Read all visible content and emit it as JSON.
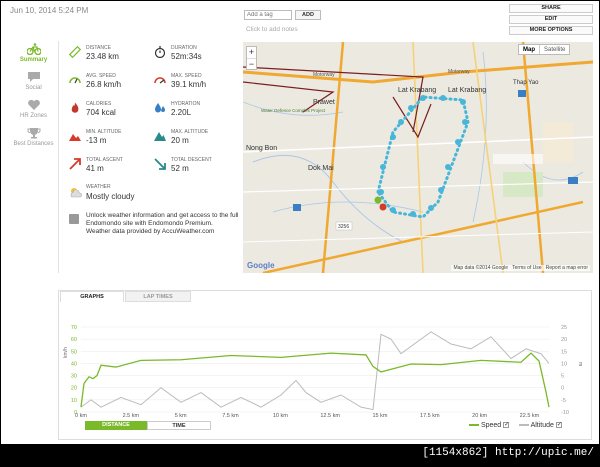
{
  "header": {
    "date": "Jun 10, 2014 5:24 PM",
    "tag_placeholder": "Add a tag",
    "add_label": "ADD",
    "notes_label": "Click to add notes",
    "actions": [
      "SHARE",
      "EDIT",
      "MORE OPTIONS"
    ]
  },
  "nav": {
    "items": [
      {
        "label": "Summary",
        "icon": "cyclist-icon"
      },
      {
        "label": "Social",
        "icon": "speech-bubble-icon"
      },
      {
        "label": "HR Zones",
        "icon": "heart-icon"
      },
      {
        "label": "Best Distances",
        "icon": "trophy-icon"
      }
    ]
  },
  "stats": [
    {
      "label": "DISTANCE",
      "value": "23.48 km",
      "icon": "ruler-icon",
      "color": "#7ab929"
    },
    {
      "label": "DURATION",
      "value": "52m:34s",
      "icon": "stopwatch-icon",
      "color": "#333333"
    },
    {
      "label": "AVG. SPEED",
      "value": "26.8 km/h",
      "icon": "speedometer-icon",
      "color": "#7ab929"
    },
    {
      "label": "MAX. SPEED",
      "value": "39.1 km/h",
      "icon": "speedometer-max-icon",
      "color": "#d63b2a"
    },
    {
      "label": "CALORIES",
      "value": "704 kcal",
      "icon": "flame-icon",
      "color": "#c0392b"
    },
    {
      "label": "HYDRATION",
      "value": "2.20L",
      "icon": "droplet-icon",
      "color": "#3a7fc4"
    },
    {
      "label": "MIN. ALTITUDE",
      "value": "-13 m",
      "icon": "altitude-down-icon",
      "color": "#d63b2a"
    },
    {
      "label": "MAX. ALTITUDE",
      "value": "20 m",
      "icon": "altitude-up-icon",
      "color": "#2a8a8a"
    },
    {
      "label": "TOTAL ASCENT",
      "value": "41 m",
      "icon": "ascent-icon",
      "color": "#d63b2a"
    },
    {
      "label": "TOTAL DESCENT",
      "value": "52 m",
      "icon": "descent-icon",
      "color": "#2a8a8a"
    }
  ],
  "weather": {
    "label": "WEATHER",
    "value": "Mostly cloudy",
    "icon": "partly-cloudy-icon"
  },
  "info": {
    "line1": "Unlock weather information and get access to the full Endomondo site with Endomondo Premium.",
    "line2": "Weather data provided by AccuWeather.com"
  },
  "map": {
    "toggle_map": "Map",
    "toggle_satellite": "Satellite",
    "zoom_in": "+",
    "zoom_out": "−",
    "places": [
      "Motorway",
      "Motorway",
      "Lat Krabang",
      "Lat Krabang",
      "Thap Yao",
      "Prawet",
      "Nong Bon",
      "Dok Mai",
      "Water Defence Complex Project"
    ],
    "road_labels": [
      "3256"
    ],
    "copyright": "Map data ©2014 Google",
    "terms": "Terms of Use",
    "report": "Report a map error"
  },
  "graphs": {
    "tabs": [
      "GRAPHS",
      "LAP TIMES"
    ],
    "yleft_ticks": [
      "70",
      "60",
      "50",
      "40",
      "30",
      "20",
      "10",
      "0"
    ],
    "yright_ticks": [
      "25",
      "20",
      "15",
      "10",
      "5",
      "0",
      "-5",
      "-10"
    ],
    "yleft_label": "km/h",
    "yright_label": "m",
    "x_ticks": [
      "0 km",
      "2.5 km",
      "5 km",
      "7.5 km",
      "10 km",
      "12.5 km",
      "15 km",
      "17.5 km",
      "20 km",
      "22.5 km"
    ],
    "legend": [
      {
        "name": "Speed",
        "color": "#7ab929"
      },
      {
        "name": "Altitude",
        "color": "#bbbbbb"
      }
    ],
    "toggles": [
      "DISTANCE",
      "TIME"
    ]
  },
  "footer": {
    "text": "[1154x862] http://upic.me/"
  }
}
